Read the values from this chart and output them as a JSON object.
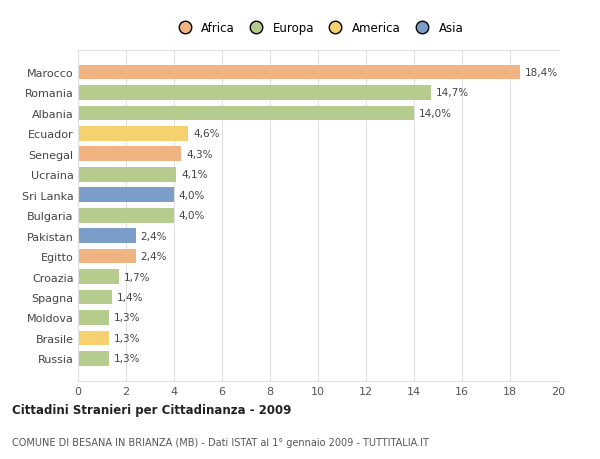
{
  "categories": [
    "Russia",
    "Brasile",
    "Moldova",
    "Spagna",
    "Croazia",
    "Egitto",
    "Pakistan",
    "Bulgaria",
    "Sri Lanka",
    "Ucraina",
    "Senegal",
    "Ecuador",
    "Albania",
    "Romania",
    "Marocco"
  ],
  "values": [
    1.3,
    1.3,
    1.3,
    1.4,
    1.7,
    2.4,
    2.4,
    4.0,
    4.0,
    4.1,
    4.3,
    4.6,
    14.0,
    14.7,
    18.4
  ],
  "labels": [
    "1,3%",
    "1,3%",
    "1,3%",
    "1,4%",
    "1,7%",
    "2,4%",
    "2,4%",
    "4,0%",
    "4,0%",
    "4,1%",
    "4,3%",
    "4,6%",
    "14,0%",
    "14,7%",
    "18,4%"
  ],
  "colors": [
    "#b5cc8e",
    "#f5d170",
    "#b5cc8e",
    "#b5cc8e",
    "#b5cc8e",
    "#f0b482",
    "#7b9dc7",
    "#b5cc8e",
    "#7b9dc7",
    "#b5cc8e",
    "#f0b482",
    "#f5d170",
    "#b5cc8e",
    "#b5cc8e",
    "#f0b482"
  ],
  "legend": [
    {
      "label": "Africa",
      "color": "#f0b482"
    },
    {
      "label": "Europa",
      "color": "#b5cc8e"
    },
    {
      "label": "America",
      "color": "#f5d170"
    },
    {
      "label": "Asia",
      "color": "#7b9dc7"
    }
  ],
  "title1": "Cittadini Stranieri per Cittadinanza - 2009",
  "title2": "COMUNE DI BESANA IN BRIANZA (MB) - Dati ISTAT al 1° gennaio 2009 - TUTTITALIA.IT",
  "xlim": [
    0,
    20
  ],
  "xticks": [
    0,
    2,
    4,
    6,
    8,
    10,
    12,
    14,
    16,
    18,
    20
  ],
  "background_color": "#ffffff",
  "grid_color": "#e0e0e0"
}
